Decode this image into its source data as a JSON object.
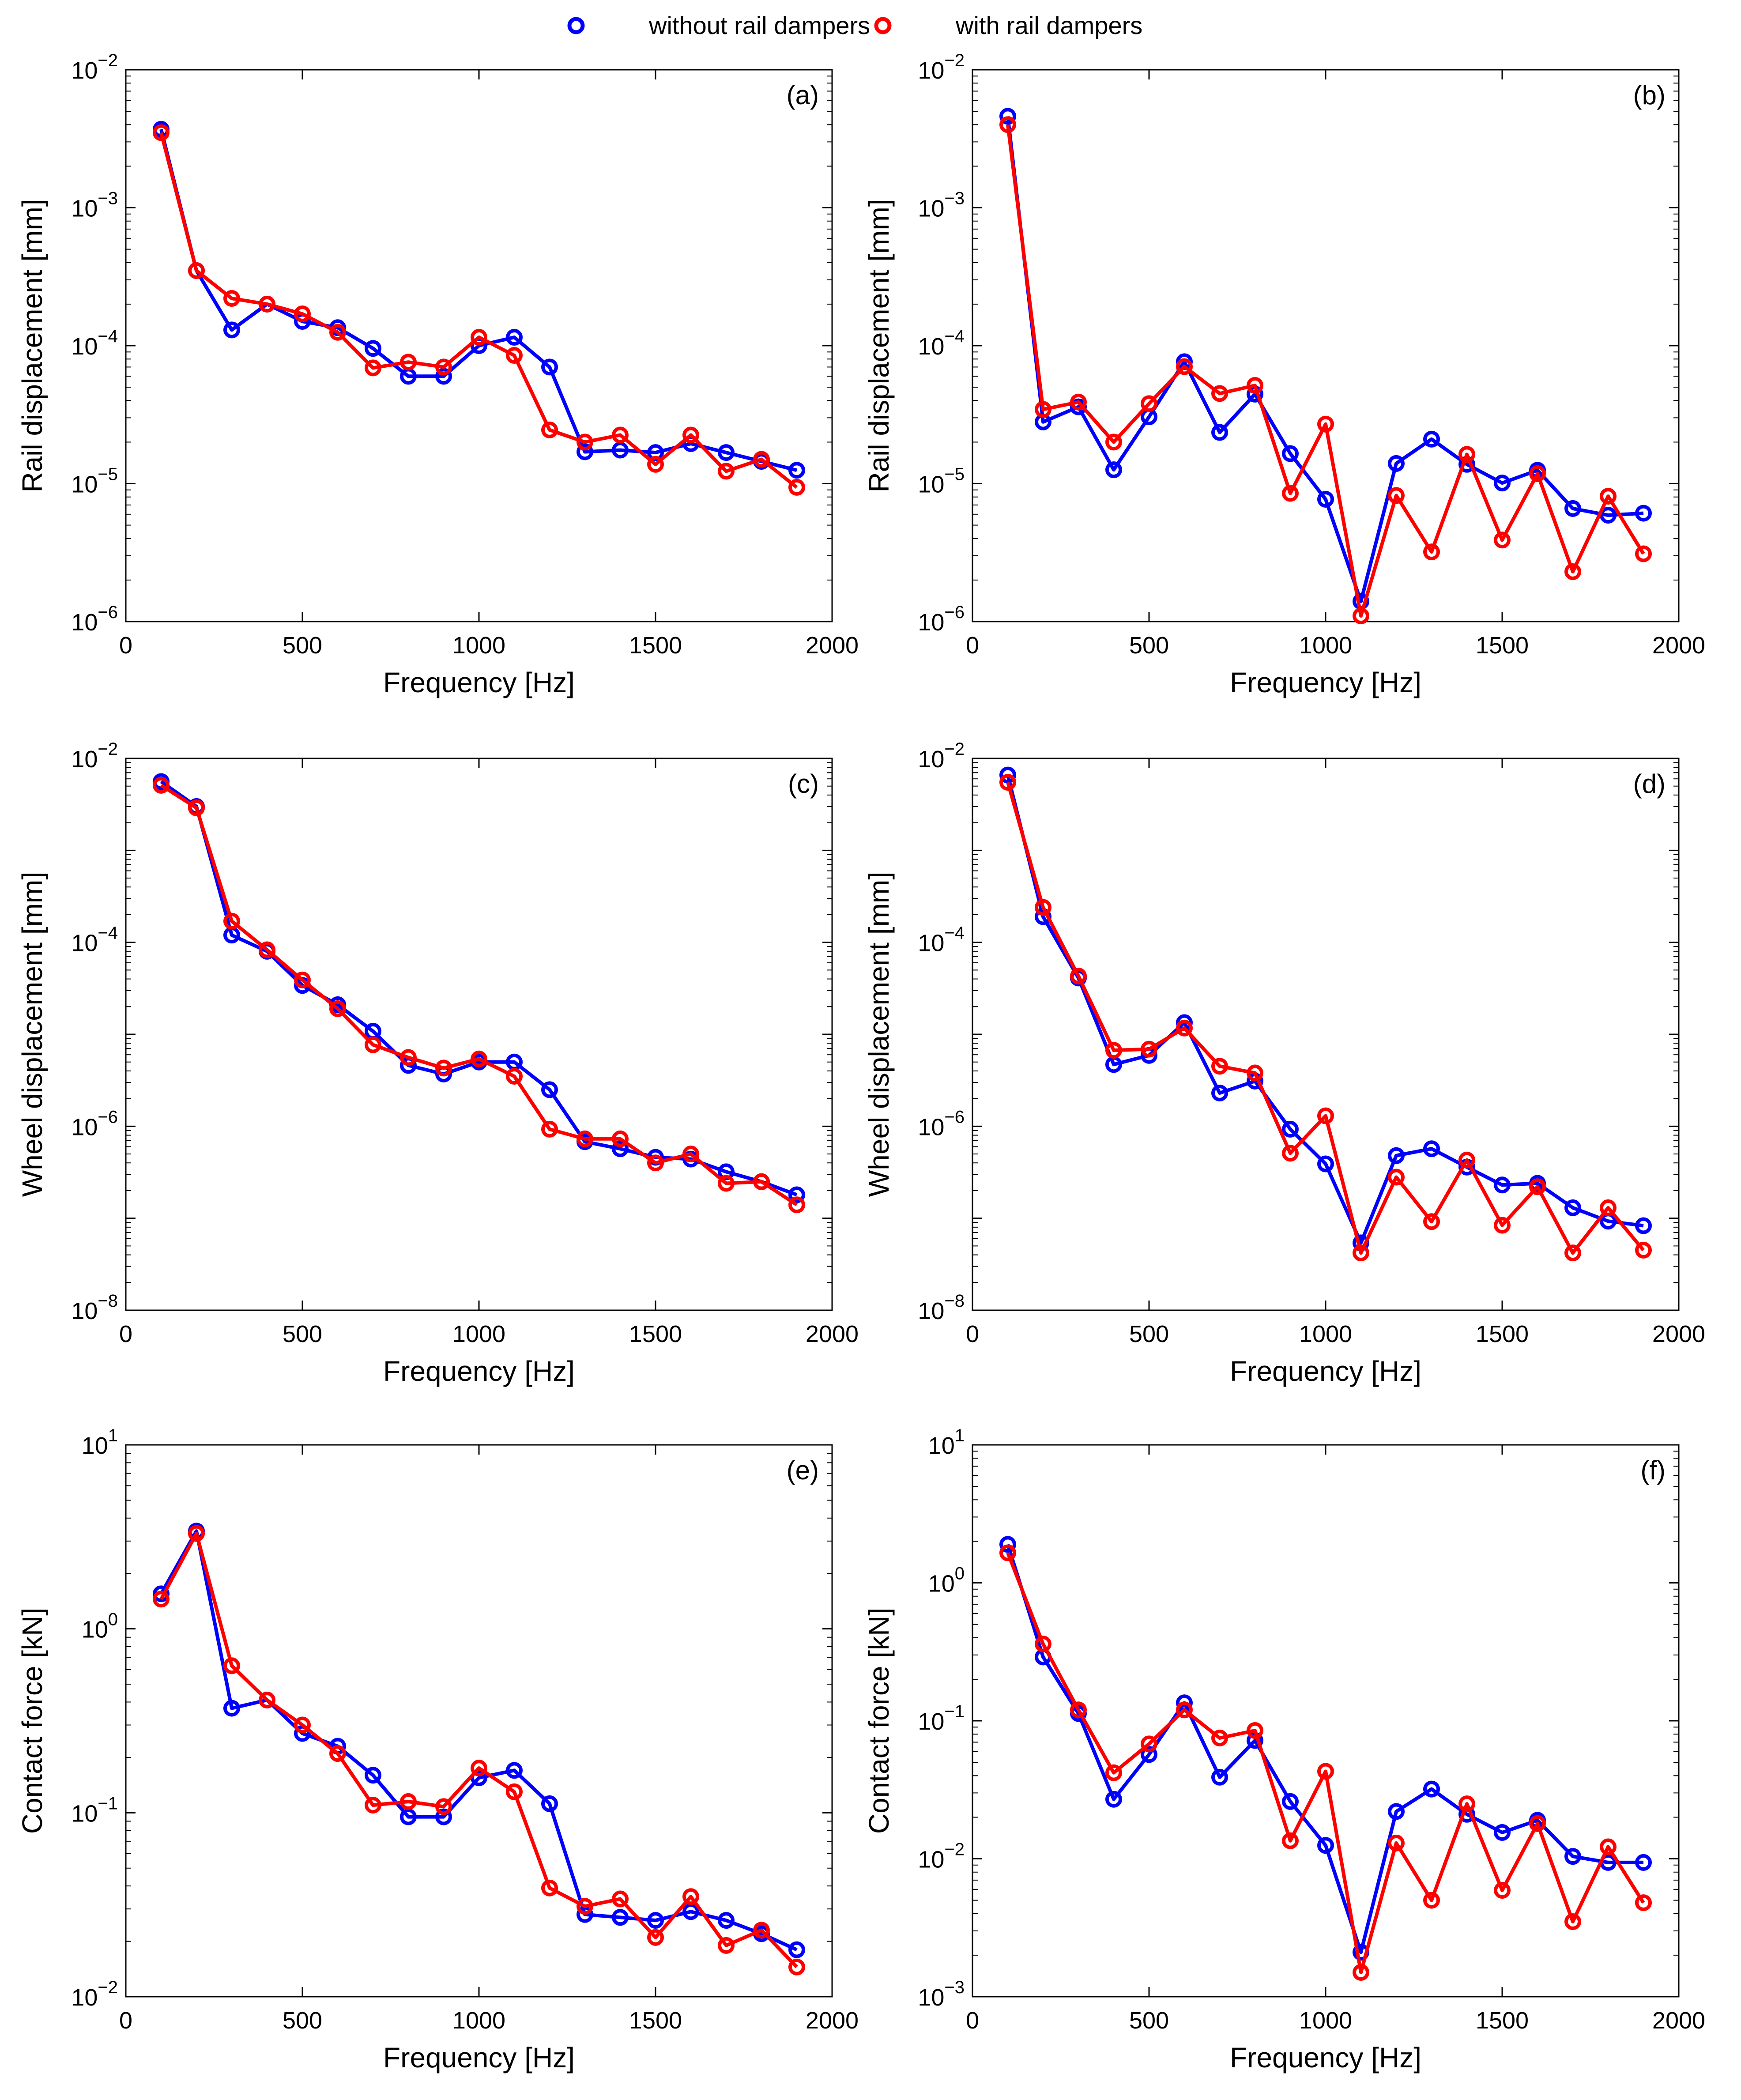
{
  "colors": {
    "without": "#0000ff",
    "with": "#ff0000"
  },
  "legend": {
    "without": "without rail dampers",
    "with": "with rail dampers"
  },
  "chart_data": [
    {
      "panel": "(a)",
      "type": "line",
      "xlabel": "Frequency [Hz]",
      "ylabel": "Rail displacement [mm]",
      "xlim": [
        0,
        2000
      ],
      "xticks": [
        0,
        500,
        1000,
        1500,
        2000
      ],
      "ylim_exp": [
        -6,
        -2
      ],
      "ytick_labels": [
        {
          "exp": -6,
          "base": "10",
          "power": "−6"
        },
        {
          "exp": -5,
          "base": "10",
          "power": "−5"
        },
        {
          "exp": -4,
          "base": "10",
          "power": "−4"
        },
        {
          "exp": -3,
          "base": "10",
          "power": "−3"
        },
        {
          "exp": -2,
          "base": "10",
          "power": "−2"
        }
      ],
      "x": [
        100,
        200,
        300,
        400,
        500,
        600,
        700,
        800,
        900,
        1000,
        1100,
        1200,
        1300,
        1400,
        1500,
        1600,
        1700,
        1800,
        1900
      ],
      "series": [
        {
          "name": "without rail dampers",
          "key": "without",
          "values": [
            0.0037,
            0.00035,
            0.00013,
            0.0002,
            0.00015,
            0.000135,
            9.55e-05,
            6e-05,
            6e-05,
            0.0001,
            0.000115,
            7e-05,
            1.7e-05,
            1.75e-05,
            1.68e-05,
            1.95e-05,
            1.68e-05,
            1.45e-05,
            1.25e-05
          ]
        },
        {
          "name": "with rail dampers",
          "key": "with",
          "values": [
            0.0035,
            0.00035,
            0.00022,
            0.0002,
            0.00017,
            0.000125,
            6.9e-05,
            7.6e-05,
            7e-05,
            0.000115,
            8.5e-05,
            2.45e-05,
            2e-05,
            2.25e-05,
            1.38e-05,
            2.25e-05,
            1.23e-05,
            1.5e-05,
            9.4e-06
          ]
        }
      ]
    },
    {
      "panel": "(b)",
      "type": "line",
      "xlabel": "Frequency [Hz]",
      "ylabel": "Rail displacement [mm]",
      "xlim": [
        0,
        2000
      ],
      "xticks": [
        0,
        500,
        1000,
        1500,
        2000
      ],
      "ylim_exp": [
        -6,
        -2
      ],
      "ytick_labels": [
        {
          "exp": -6,
          "base": "10",
          "power": "−6"
        },
        {
          "exp": -5,
          "base": "10",
          "power": "−5"
        },
        {
          "exp": -4,
          "base": "10",
          "power": "−4"
        },
        {
          "exp": -3,
          "base": "10",
          "power": "−3"
        },
        {
          "exp": -2,
          "base": "10",
          "power": "−2"
        }
      ],
      "x": [
        100,
        200,
        300,
        400,
        500,
        600,
        700,
        800,
        900,
        1000,
        1100,
        1200,
        1300,
        1400,
        1500,
        1600,
        1700,
        1800,
        1900
      ],
      "series": [
        {
          "name": "without rail dampers",
          "key": "without",
          "values": [
            0.0046,
            2.8e-05,
            3.6e-05,
            1.26e-05,
            3.05e-05,
            7.65e-05,
            2.35e-05,
            4.45e-05,
            1.65e-05,
            7.7e-06,
            1.4e-06,
            1.4e-05,
            2.1e-05,
            1.38e-05,
            1.01e-05,
            1.25e-05,
            6.6e-06,
            5.9e-06,
            6.1e-06
          ]
        },
        {
          "name": "with rail dampers",
          "key": "with",
          "values": [
            0.004,
            3.45e-05,
            3.9e-05,
            2e-05,
            3.8e-05,
            7.05e-05,
            4.5e-05,
            5.15e-05,
            8.5e-06,
            2.7e-05,
            1.1e-06,
            8.2e-06,
            3.2e-06,
            1.63e-05,
            3.9e-06,
            1.18e-05,
            2.3e-06,
            8.1e-06,
            3.1e-06
          ]
        }
      ]
    },
    {
      "panel": "(c)",
      "type": "line",
      "xlabel": "Frequency [Hz]",
      "ylabel": "Wheel displacement [mm]",
      "xlim": [
        0,
        2000
      ],
      "xticks": [
        0,
        500,
        1000,
        1500,
        2000
      ],
      "ylim_exp": [
        -8,
        -2
      ],
      "ytick_labels": [
        {
          "exp": -8,
          "base": "10",
          "power": "−8"
        },
        {
          "exp": -6,
          "base": "10",
          "power": "−6"
        },
        {
          "exp": -4,
          "base": "10",
          "power": "−4"
        },
        {
          "exp": -2,
          "base": "10",
          "power": "−2"
        }
      ],
      "x": [
        100,
        200,
        300,
        400,
        500,
        600,
        700,
        800,
        900,
        1000,
        1100,
        1200,
        1300,
        1400,
        1500,
        1600,
        1700,
        1800,
        1900
      ],
      "series": [
        {
          "name": "without rail dampers",
          "key": "without",
          "values": [
            0.0056,
            0.003,
            0.00012,
            8e-05,
            3.4e-05,
            2.1e-05,
            1.08e-05,
            4.6e-06,
            3.7e-06,
            5e-06,
            5e-06,
            2.5e-06,
            6.8e-07,
            5.7e-07,
            4.6e-07,
            4.4e-07,
            3.2e-07,
            2.5e-07,
            1.8e-07
          ]
        },
        {
          "name": "with rail dampers",
          "key": "with",
          "values": [
            0.0051,
            0.0029,
            0.00017,
            8.3e-05,
            3.9e-05,
            1.9e-05,
            7.7e-06,
            5.6e-06,
            4.3e-06,
            5.4e-06,
            3.5e-06,
            9.3e-07,
            7.3e-07,
            7.3e-07,
            4e-07,
            5e-07,
            2.4e-07,
            2.5e-07,
            1.4e-07
          ]
        }
      ]
    },
    {
      "panel": "(d)",
      "type": "line",
      "xlabel": "Frequency [Hz]",
      "ylabel": "Wheel displacement [mm]",
      "xlim": [
        0,
        2000
      ],
      "xticks": [
        0,
        500,
        1000,
        1500,
        2000
      ],
      "ylim_exp": [
        -8,
        -2
      ],
      "ytick_labels": [
        {
          "exp": -8,
          "base": "10",
          "power": "−8"
        },
        {
          "exp": -6,
          "base": "10",
          "power": "−6"
        },
        {
          "exp": -4,
          "base": "10",
          "power": "−4"
        },
        {
          "exp": -2,
          "base": "10",
          "power": "−2"
        }
      ],
      "x": [
        100,
        200,
        300,
        400,
        500,
        600,
        700,
        800,
        900,
        1000,
        1100,
        1200,
        1300,
        1400,
        1500,
        1600,
        1700,
        1800,
        1900
      ],
      "series": [
        {
          "name": "without rail dampers",
          "key": "without",
          "values": [
            0.0066,
            0.00019,
            4.1e-05,
            4.7e-06,
            5.9e-06,
            1.34e-05,
            2.3e-06,
            3.1e-06,
            9.3e-07,
            3.9e-07,
            5.4e-08,
            4.8e-07,
            5.7e-07,
            3.6e-07,
            2.3e-07,
            2.4e-07,
            1.3e-07,
            9.3e-08,
            8.3e-08
          ]
        },
        {
          "name": "with rail dampers",
          "key": "with",
          "values": [
            0.0055,
            0.00024,
            4.3e-05,
            6.7e-06,
            6.9e-06,
            1.17e-05,
            4.5e-06,
            3.8e-06,
            5.1e-07,
            1.3e-06,
            4.2e-08,
            2.8e-07,
            9.2e-08,
            4.3e-07,
            8.4e-08,
            2.2e-07,
            4.2e-08,
            1.3e-07,
            4.5e-08
          ]
        }
      ]
    },
    {
      "panel": "(e)",
      "type": "line",
      "xlabel": "Frequency [Hz]",
      "ylabel": "Contact force [kN]",
      "xlim": [
        0,
        2000
      ],
      "xticks": [
        0,
        500,
        1000,
        1500,
        2000
      ],
      "ylim_exp": [
        -2,
        1
      ],
      "ytick_labels": [
        {
          "exp": -2,
          "base": "10",
          "power": "−2"
        },
        {
          "exp": -1,
          "base": "10",
          "power": "−1"
        },
        {
          "exp": 0,
          "base": "10",
          "power": "0"
        },
        {
          "exp": 1,
          "base": "10",
          "power": "1"
        }
      ],
      "x": [
        100,
        200,
        300,
        400,
        500,
        600,
        700,
        800,
        900,
        1000,
        1100,
        1200,
        1300,
        1400,
        1500,
        1600,
        1700,
        1800,
        1900
      ],
      "series": [
        {
          "name": "without rail dampers",
          "key": "without",
          "values": [
            1.55,
            3.4,
            0.37,
            0.41,
            0.27,
            0.23,
            0.16,
            0.095,
            0.095,
            0.155,
            0.17,
            0.112,
            0.028,
            0.027,
            0.026,
            0.029,
            0.026,
            0.022,
            0.018
          ]
        },
        {
          "name": "with rail dampers",
          "key": "with",
          "values": [
            1.45,
            3.3,
            0.63,
            0.41,
            0.3,
            0.21,
            0.11,
            0.115,
            0.108,
            0.175,
            0.13,
            0.039,
            0.031,
            0.034,
            0.021,
            0.035,
            0.019,
            0.023,
            0.0145
          ]
        }
      ]
    },
    {
      "panel": "(f)",
      "type": "line",
      "xlabel": "Frequency [Hz]",
      "ylabel": "Contact force [kN]",
      "xlim": [
        0,
        2000
      ],
      "xticks": [
        0,
        500,
        1000,
        1500,
        2000
      ],
      "ylim_exp": [
        -3,
        1
      ],
      "ytick_labels": [
        {
          "exp": -3,
          "base": "10",
          "power": "−3"
        },
        {
          "exp": -2,
          "base": "10",
          "power": "−2"
        },
        {
          "exp": -1,
          "base": "10",
          "power": "−1"
        },
        {
          "exp": 0,
          "base": "10",
          "power": "0"
        },
        {
          "exp": 1,
          "base": "10",
          "power": "1"
        }
      ],
      "x": [
        100,
        200,
        300,
        400,
        500,
        600,
        700,
        800,
        900,
        1000,
        1100,
        1200,
        1300,
        1400,
        1500,
        1600,
        1700,
        1800,
        1900
      ],
      "series": [
        {
          "name": "without rail dampers",
          "key": "without",
          "values": [
            1.9,
            0.29,
            0.113,
            0.027,
            0.057,
            0.135,
            0.039,
            0.072,
            0.026,
            0.0125,
            0.0021,
            0.022,
            0.032,
            0.021,
            0.0155,
            0.019,
            0.0104,
            0.0094,
            0.0094
          ]
        },
        {
          "name": "with rail dampers",
          "key": "with",
          "values": [
            1.65,
            0.36,
            0.12,
            0.042,
            0.068,
            0.12,
            0.075,
            0.085,
            0.0135,
            0.043,
            0.0015,
            0.013,
            0.005,
            0.025,
            0.0059,
            0.018,
            0.0035,
            0.0122,
            0.0048
          ]
        }
      ]
    }
  ]
}
